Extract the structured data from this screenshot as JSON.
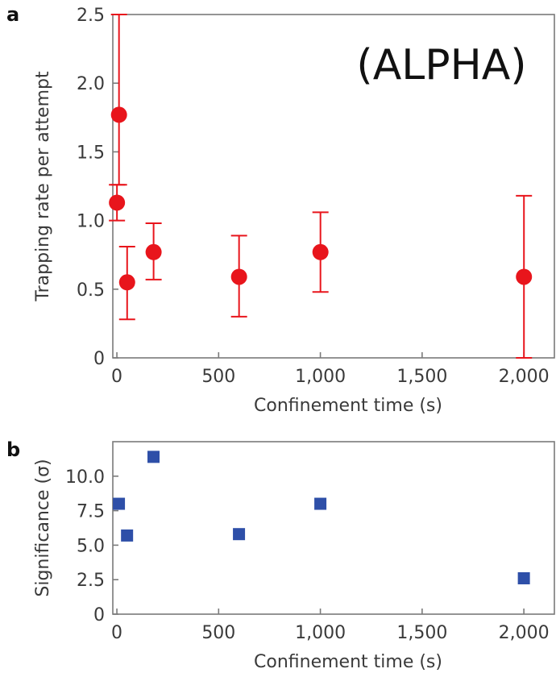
{
  "annotation": "(ALPHA)",
  "chart_data": [
    {
      "panel": "a",
      "type": "scatter",
      "xlabel": "Confinement time (s)",
      "ylabel": "Trapping rate per attempt",
      "xlim": [
        -20,
        2150
      ],
      "ylim": [
        0,
        2.5
      ],
      "xticks": [
        0,
        500,
        1000,
        1500,
        2000
      ],
      "xtick_labels": [
        "0",
        "500",
        "1,000",
        "1,500",
        "2,000"
      ],
      "yticks": [
        0,
        0.5,
        1.0,
        1.5,
        2.0,
        2.5
      ],
      "ytick_labels": [
        "0",
        "0.5",
        "1.0",
        "1.5",
        "2.0",
        "2.5"
      ],
      "marker": "circle",
      "color": "#e8151c",
      "points": [
        {
          "x": 10.4,
          "y": 1.77,
          "err_low": 1.26,
          "err_high": 2.5
        },
        {
          "x": 0.4,
          "y": 1.13,
          "err_low": 1.0,
          "err_high": 1.26
        },
        {
          "x": 50.4,
          "y": 0.55,
          "err_low": 0.28,
          "err_high": 0.81
        },
        {
          "x": 180.4,
          "y": 0.77,
          "err_low": 0.57,
          "err_high": 0.98
        },
        {
          "x": 600.4,
          "y": 0.59,
          "err_low": 0.3,
          "err_high": 0.89
        },
        {
          "x": 1000.4,
          "y": 0.77,
          "err_low": 0.48,
          "err_high": 1.06
        },
        {
          "x": 2000.4,
          "y": 0.59,
          "err_low": 0.0,
          "err_high": 1.18
        }
      ]
    },
    {
      "panel": "b",
      "type": "scatter",
      "xlabel": "Confinement time (s)",
      "ylabel": "Significance (σ)",
      "xlim": [
        -20,
        2150
      ],
      "ylim": [
        0,
        12.5
      ],
      "xticks": [
        0,
        500,
        1000,
        1500,
        2000
      ],
      "xtick_labels": [
        "0",
        "500",
        "1,000",
        "1,500",
        "2,000"
      ],
      "yticks": [
        0,
        2.5,
        5.0,
        7.5,
        10.0
      ],
      "ytick_labels": [
        "0",
        "2.5",
        "5.0",
        "7.5",
        "10.0"
      ],
      "marker": "square",
      "color": "#2e4fa8",
      "points": [
        {
          "x": 10,
          "y": 8.0
        },
        {
          "x": 50,
          "y": 5.7
        },
        {
          "x": 180,
          "y": 11.4
        },
        {
          "x": 600,
          "y": 5.8
        },
        {
          "x": 1000,
          "y": 8.0
        },
        {
          "x": 2000,
          "y": 2.6
        }
      ]
    }
  ]
}
